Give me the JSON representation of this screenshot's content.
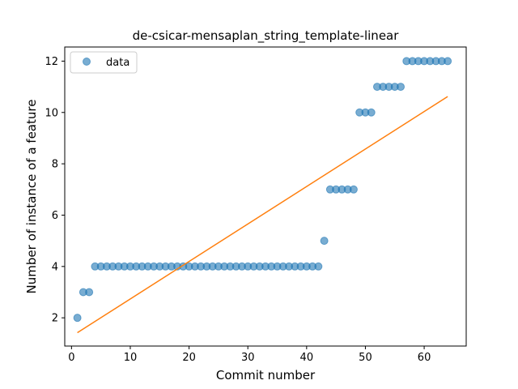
{
  "chart_data": {
    "type": "scatter",
    "title": "de-csicar-mensaplan_string_template-linear",
    "xlabel": "Commit number",
    "ylabel": "Number of instance of a feature",
    "xlim": [
      -1.15,
      67.15
    ],
    "ylim": [
      0.9,
      12.55
    ],
    "xticks": [
      0,
      10,
      20,
      30,
      40,
      50,
      60
    ],
    "yticks": [
      2,
      4,
      6,
      8,
      10,
      12
    ],
    "grid": false,
    "legend": {
      "placement": "top-left",
      "entries": [
        "data"
      ]
    },
    "series": [
      {
        "name": "data",
        "kind": "points",
        "color": "#1f77b4",
        "x": [
          1,
          2,
          3,
          4,
          5,
          6,
          7,
          8,
          9,
          10,
          11,
          12,
          13,
          14,
          15,
          16,
          17,
          18,
          19,
          20,
          21,
          22,
          23,
          24,
          25,
          26,
          27,
          28,
          29,
          30,
          31,
          32,
          33,
          34,
          35,
          36,
          37,
          38,
          39,
          40,
          41,
          42,
          43,
          44,
          45,
          46,
          47,
          48,
          49,
          50,
          51,
          52,
          53,
          54,
          55,
          56,
          57,
          58,
          59,
          60,
          61,
          62,
          63,
          64
        ],
        "y": [
          2,
          3,
          3,
          4,
          4,
          4,
          4,
          4,
          4,
          4,
          4,
          4,
          4,
          4,
          4,
          4,
          4,
          4,
          4,
          4,
          4,
          4,
          4,
          4,
          4,
          4,
          4,
          4,
          4,
          4,
          4,
          4,
          4,
          4,
          4,
          4,
          4,
          4,
          4,
          4,
          4,
          4,
          5,
          7,
          7,
          7,
          7,
          7,
          10,
          10,
          10,
          11,
          11,
          11,
          11,
          11,
          12,
          12,
          12,
          12,
          12,
          12,
          12,
          12
        ]
      },
      {
        "kind": "line",
        "color": "#ff7f0e",
        "x": [
          1,
          64
        ],
        "y": [
          1.42,
          10.62
        ]
      }
    ]
  }
}
